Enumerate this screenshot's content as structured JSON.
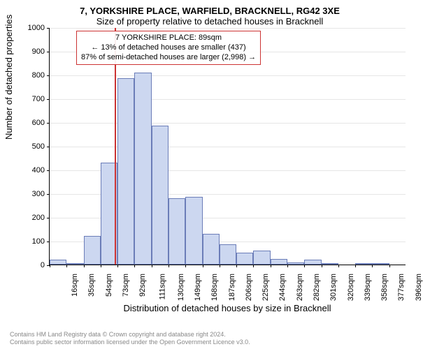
{
  "chart": {
    "type": "histogram",
    "title_line1": "7, YORKSHIRE PLACE, WARFIELD, BRACKNELL, RG42 3XE",
    "title_line2": "Size of property relative to detached houses in Bracknell",
    "x_axis_title": "Distribution of detached houses by size in Bracknell",
    "y_axis_title": "Number of detached properties",
    "background_color": "#ffffff",
    "grid_color": "#e6e6e6",
    "bar_fill": "#ccd7f0",
    "bar_stroke": "#6b7db8",
    "marker_color": "#cc3333",
    "ylim": [
      0,
      1000
    ],
    "ytick_step": 100,
    "xlim": [
      16,
      415
    ],
    "xtick_labels": [
      "16sqm",
      "35sqm",
      "54sqm",
      "73sqm",
      "92sqm",
      "111sqm",
      "130sqm",
      "149sqm",
      "168sqm",
      "187sqm",
      "206sqm",
      "225sqm",
      "244sqm",
      "263sqm",
      "282sqm",
      "301sqm",
      "320sqm",
      "339sqm",
      "358sqm",
      "377sqm",
      "396sqm"
    ],
    "xtick_values": [
      16,
      35,
      54,
      73,
      92,
      111,
      130,
      149,
      168,
      187,
      206,
      225,
      244,
      263,
      282,
      301,
      320,
      339,
      358,
      377,
      396
    ],
    "bars": [
      {
        "x0": 16,
        "x1": 35,
        "y": 20
      },
      {
        "x0": 35,
        "x1": 54,
        "y": 5
      },
      {
        "x0": 54,
        "x1": 73,
        "y": 120
      },
      {
        "x0": 73,
        "x1": 92,
        "y": 430
      },
      {
        "x0": 92,
        "x1": 111,
        "y": 785
      },
      {
        "x0": 111,
        "x1": 130,
        "y": 810
      },
      {
        "x0": 130,
        "x1": 149,
        "y": 585
      },
      {
        "x0": 149,
        "x1": 168,
        "y": 280
      },
      {
        "x0": 168,
        "x1": 187,
        "y": 285
      },
      {
        "x0": 187,
        "x1": 206,
        "y": 130
      },
      {
        "x0": 206,
        "x1": 225,
        "y": 85
      },
      {
        "x0": 225,
        "x1": 244,
        "y": 50
      },
      {
        "x0": 244,
        "x1": 263,
        "y": 60
      },
      {
        "x0": 263,
        "x1": 282,
        "y": 25
      },
      {
        "x0": 282,
        "x1": 301,
        "y": 10
      },
      {
        "x0": 301,
        "x1": 320,
        "y": 20
      },
      {
        "x0": 320,
        "x1": 339,
        "y": 5
      },
      {
        "x0": 339,
        "x1": 358,
        "y": 0
      },
      {
        "x0": 358,
        "x1": 377,
        "y": 5
      },
      {
        "x0": 377,
        "x1": 396,
        "y": 5
      }
    ],
    "marker_x": 89,
    "annotation": {
      "line1": "7 YORKSHIRE PLACE: 89sqm",
      "line2": "← 13% of detached houses are smaller (437)",
      "line3": "87% of semi-detached houses are larger (2,998) →"
    },
    "footer_line1": "Contains HM Land Registry data © Crown copyright and database right 2024.",
    "footer_line2": "Contains public sector information licensed under the Open Government Licence v3.0."
  }
}
